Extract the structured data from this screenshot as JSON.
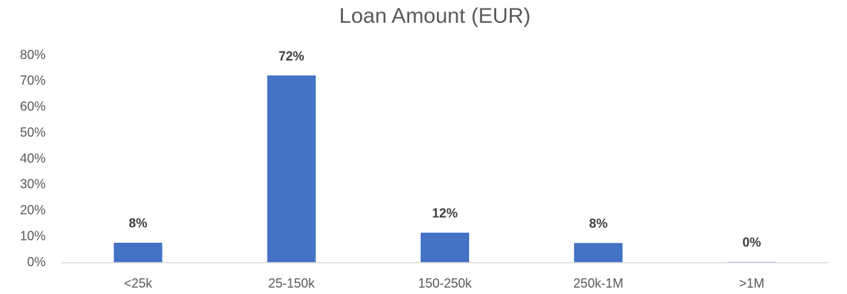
{
  "chart_data": {
    "type": "bar",
    "title": "Loan Amount (EUR)",
    "categories": [
      "<25k",
      "25-150k",
      "150-250k",
      "250k-1M",
      ">1M"
    ],
    "values": [
      7.7,
      72.3,
      11.6,
      7.6,
      0.3
    ],
    "value_labels": [
      "8%",
      "72%",
      "12%",
      "8%",
      "0%"
    ],
    "color": "#4472c4",
    "ylim": [
      0,
      80
    ],
    "yticks": [
      {
        "value": 0,
        "label": "0%"
      },
      {
        "value": 10,
        "label": "10%"
      },
      {
        "value": 20,
        "label": "20%"
      },
      {
        "value": 30,
        "label": "30%"
      },
      {
        "value": 40,
        "label": "40%"
      },
      {
        "value": 50,
        "label": "50%"
      },
      {
        "value": 60,
        "label": "60%"
      },
      {
        "value": 70,
        "label": "70%"
      },
      {
        "value": 80,
        "label": "80%"
      }
    ],
    "grid": false
  }
}
